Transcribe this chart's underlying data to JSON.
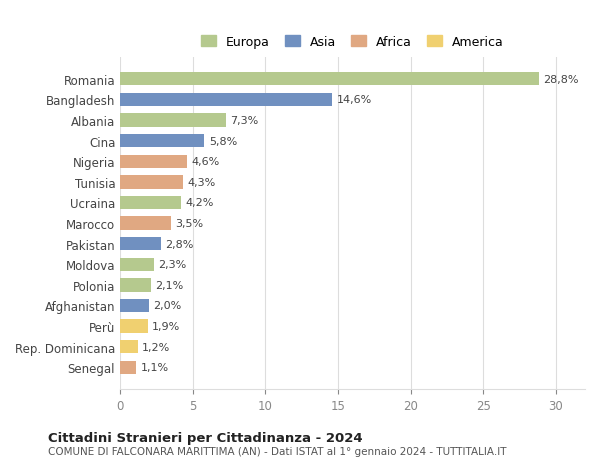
{
  "countries": [
    "Romania",
    "Bangladesh",
    "Albania",
    "Cina",
    "Nigeria",
    "Tunisia",
    "Ucraina",
    "Marocco",
    "Pakistan",
    "Moldova",
    "Polonia",
    "Afghanistan",
    "Perù",
    "Rep. Dominicana",
    "Senegal"
  ],
  "values": [
    28.8,
    14.6,
    7.3,
    5.8,
    4.6,
    4.3,
    4.2,
    3.5,
    2.8,
    2.3,
    2.1,
    2.0,
    1.9,
    1.2,
    1.1
  ],
  "labels": [
    "28,8%",
    "14,6%",
    "7,3%",
    "5,8%",
    "4,6%",
    "4,3%",
    "4,2%",
    "3,5%",
    "2,8%",
    "2,3%",
    "2,1%",
    "2,0%",
    "1,9%",
    "1,2%",
    "1,1%"
  ],
  "regions": [
    "Europa",
    "Asia",
    "Europa",
    "Asia",
    "Africa",
    "Africa",
    "Europa",
    "Africa",
    "Asia",
    "Europa",
    "Europa",
    "Asia",
    "America",
    "America",
    "Africa"
  ],
  "region_colors": {
    "Europa": "#b5c98e",
    "Asia": "#7090c0",
    "Africa": "#e0a882",
    "America": "#f0d070"
  },
  "legend_labels": [
    "Europa",
    "Asia",
    "Africa",
    "America"
  ],
  "legend_colors": [
    "#b5c98e",
    "#7090c0",
    "#e0a882",
    "#f0d070"
  ],
  "title": "Cittadini Stranieri per Cittadinanza - 2024",
  "subtitle": "COMUNE DI FALCONARA MARITTIMA (AN) - Dati ISTAT al 1° gennaio 2024 - TUTTITALIA.IT",
  "xlim": [
    0,
    32
  ],
  "xticks": [
    0,
    5,
    10,
    15,
    20,
    25,
    30
  ],
  "background_color": "#ffffff",
  "grid_color": "#dddddd",
  "bar_height": 0.65
}
